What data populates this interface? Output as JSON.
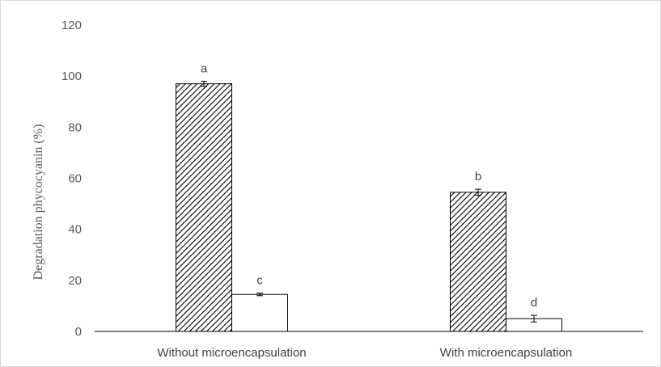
{
  "chart_data": {
    "type": "bar",
    "categories": [
      "Without microencapsulation",
      "With microencapsulation"
    ],
    "series": [
      {
        "values": [
          97,
          54.5
        ],
        "errors": [
          1.0,
          1.2
        ],
        "labels": [
          "a",
          "b"
        ],
        "fill": "hatched"
      },
      {
        "values": [
          14.5,
          5
        ],
        "errors": [
          0.5,
          1.3
        ],
        "labels": [
          "c",
          "d"
        ],
        "fill": "white"
      }
    ],
    "ylabel": "Degradation phycocyanin (%)",
    "xlabel": "",
    "ylim": [
      0,
      120
    ],
    "yticks": [
      0,
      20,
      40,
      60,
      80,
      100,
      120
    ],
    "grid": false,
    "legend": "none",
    "colors": {
      "bar_outline": "#000000",
      "axis": "#000000",
      "tick_text": "#595959"
    }
  }
}
